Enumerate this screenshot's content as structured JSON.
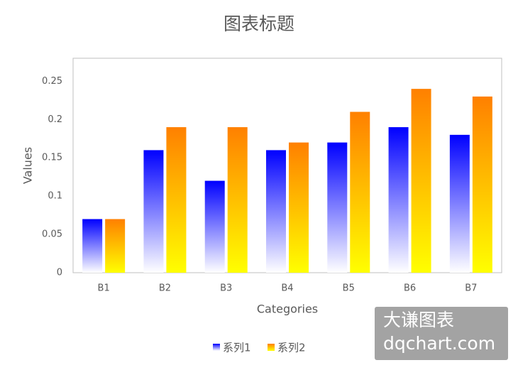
{
  "chart_data": {
    "type": "bar",
    "title": "图表标题",
    "x_label": "Categories",
    "y_label": "Values",
    "categories": [
      "B1",
      "B2",
      "B3",
      "B4",
      "B5",
      "B6",
      "B7"
    ],
    "series": [
      {
        "name": "系列1",
        "color": "#0000ff",
        "gradient_end": "#ffffff",
        "values": [
          0.07,
          0.16,
          0.12,
          0.16,
          0.17,
          0.19,
          0.18
        ]
      },
      {
        "name": "系列2",
        "color": "#ff8000",
        "gradient_end": "#ffff00",
        "values": [
          0.07,
          0.19,
          0.19,
          0.17,
          0.21,
          0.24,
          0.23
        ]
      }
    ],
    "ylim": [
      0,
      0.28
    ],
    "yticks": [
      0,
      0.05,
      0.1,
      0.15,
      0.2,
      0.25
    ],
    "grid": false,
    "legend": "bottom",
    "annotations": [
      "大谦图表",
      "dqchart.com"
    ]
  }
}
